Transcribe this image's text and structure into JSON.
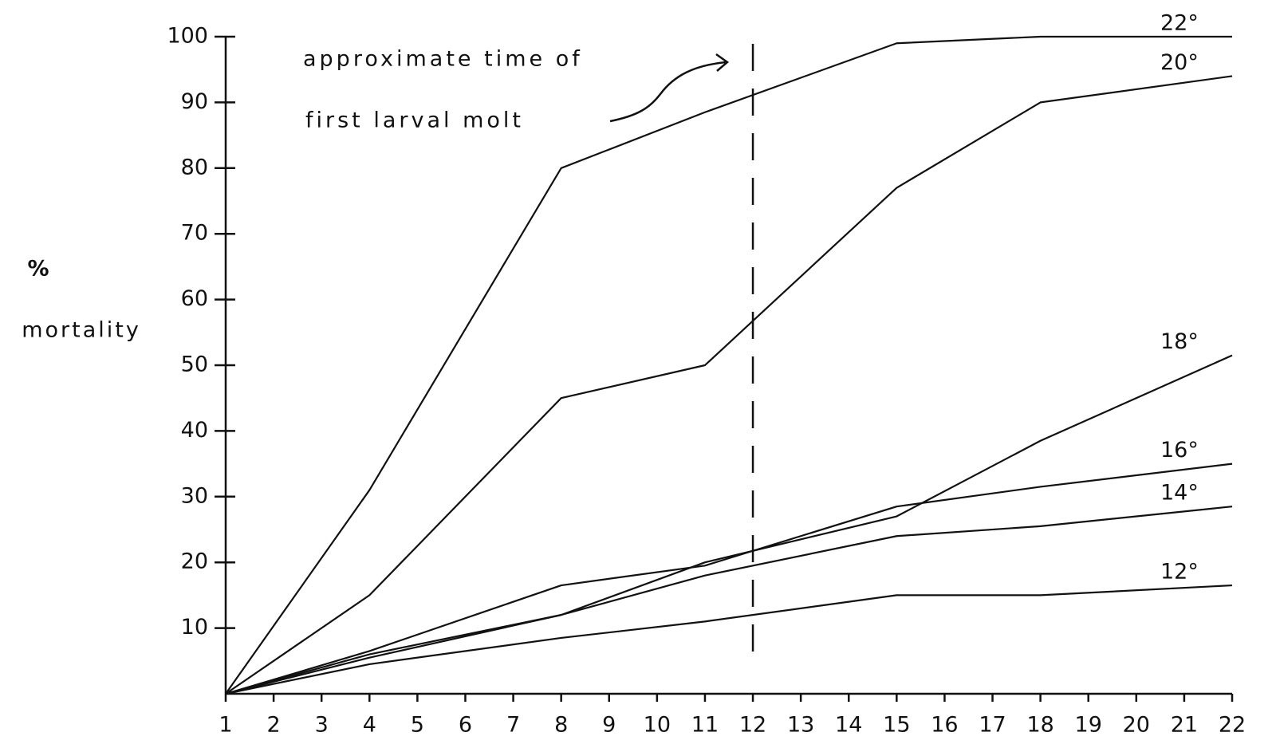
{
  "chart_data": {
    "type": "line",
    "y_label": [
      "%",
      "mortality"
    ],
    "annotation": [
      "approximate time of",
      "first larval molt"
    ],
    "reference_line": {
      "x": 12
    },
    "x": [
      1,
      4,
      8,
      11,
      15,
      18,
      22
    ],
    "xlim": [
      1,
      22
    ],
    "xticks": [
      1,
      2,
      3,
      4,
      5,
      6,
      7,
      8,
      9,
      10,
      11,
      12,
      13,
      14,
      15,
      16,
      17,
      18,
      19,
      20,
      21,
      22
    ],
    "ylim": [
      0,
      100
    ],
    "yticks": [
      10,
      20,
      30,
      40,
      50,
      60,
      70,
      80,
      90,
      100
    ],
    "series": [
      {
        "name": "22°",
        "color": "#111111",
        "values": [
          0,
          31,
          80,
          88.5,
          99,
          100,
          100
        ]
      },
      {
        "name": "20°",
        "color": "#111111",
        "values": [
          0,
          15,
          45,
          50,
          77,
          90,
          94
        ]
      },
      {
        "name": "18°",
        "color": "#111111",
        "values": [
          0,
          6,
          12,
          20,
          27,
          38.5,
          51.5
        ]
      },
      {
        "name": "16°",
        "color": "#111111",
        "values": [
          0,
          6.5,
          16.5,
          19.5,
          28.5,
          31.5,
          35
        ]
      },
      {
        "name": "14°",
        "color": "#111111",
        "values": [
          0,
          5.5,
          12,
          18,
          24,
          25.5,
          28.5
        ]
      },
      {
        "name": "12°",
        "color": "#111111",
        "values": [
          0,
          4.5,
          8.5,
          11,
          15,
          15,
          16.5
        ]
      }
    ]
  }
}
